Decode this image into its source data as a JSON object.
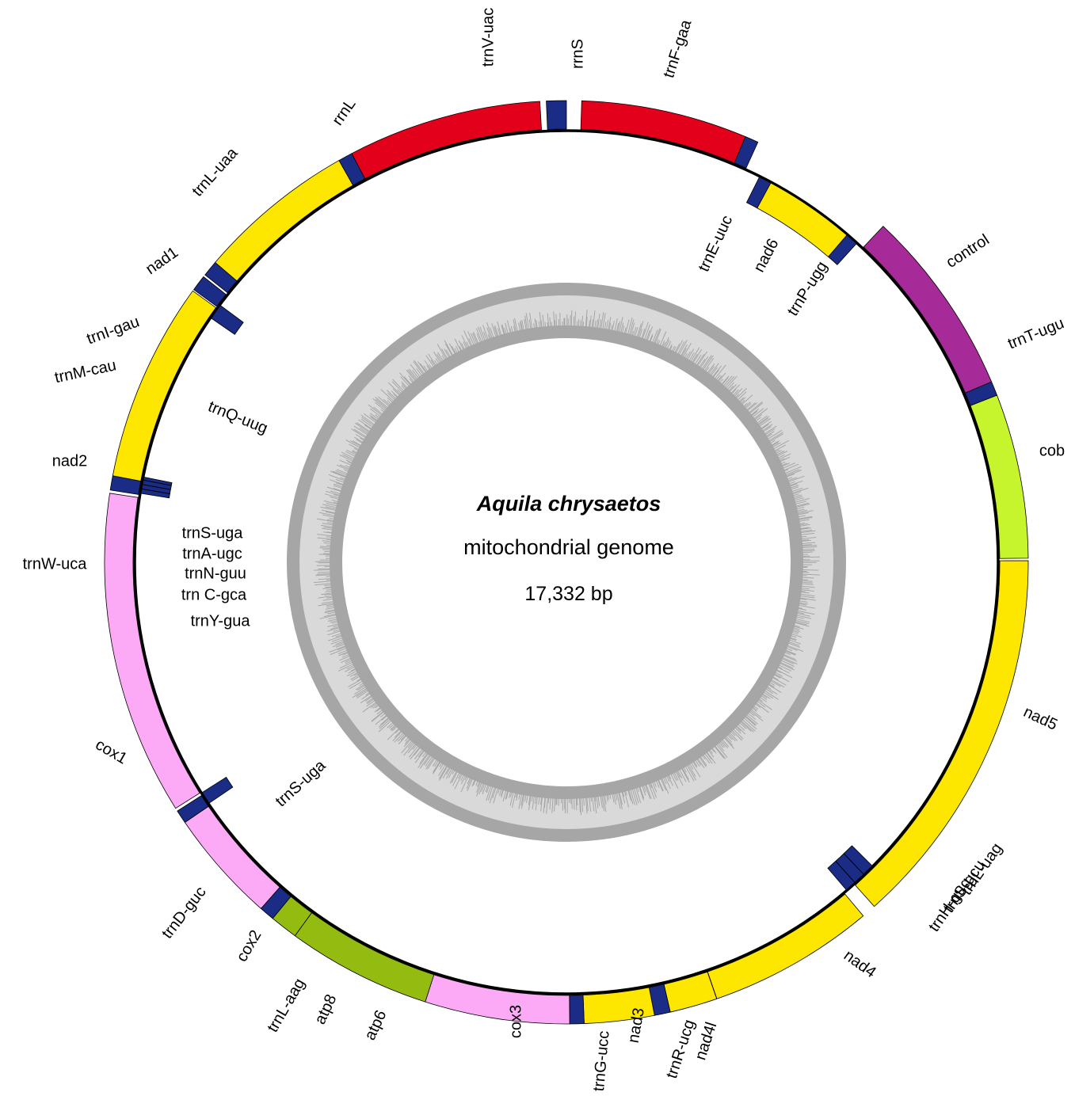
{
  "title": {
    "species": "Aquila chrysaetos",
    "subtitle": "mitochondrial genome",
    "length": "17,332 bp"
  },
  "colors": {
    "rRNA": "#e3001b",
    "tRNA": "#1a2c86",
    "nad": "#fde600",
    "cox": "#fcaaf5",
    "atp": "#94bb10",
    "cob": "#c6f52d",
    "control": "#a62a97",
    "gc_outer": "#a6a6a6",
    "gc_inner": "#d9d9d9",
    "backbone": "#000000"
  },
  "features": [
    {
      "name": "trnV-uac",
      "type": "tRNA"
    },
    {
      "name": "rrnS",
      "type": "rRNA"
    },
    {
      "name": "trnF-gaa",
      "type": "tRNA"
    },
    {
      "name": "trnE-uuc",
      "type": "tRNA"
    },
    {
      "name": "nad6",
      "type": "nad"
    },
    {
      "name": "trnP-ugg",
      "type": "tRNA"
    },
    {
      "name": "control",
      "type": "control"
    },
    {
      "name": "trnT-ugu",
      "type": "tRNA"
    },
    {
      "name": "cob",
      "type": "cob"
    },
    {
      "name": "nad5",
      "type": "nad"
    },
    {
      "name": "trnL-uag",
      "type": "tRNA"
    },
    {
      "name": "trnS-gcu",
      "type": "tRNA"
    },
    {
      "name": "trnH-gug",
      "type": "tRNA"
    },
    {
      "name": "nad4",
      "type": "nad"
    },
    {
      "name": "nad4l",
      "type": "nad"
    },
    {
      "name": "trnR-ucg",
      "type": "tRNA"
    },
    {
      "name": "nad3",
      "type": "nad"
    },
    {
      "name": "trnG-ucc",
      "type": "tRNA"
    },
    {
      "name": "cox3",
      "type": "cox"
    },
    {
      "name": "atp6",
      "type": "atp"
    },
    {
      "name": "atp8",
      "type": "atp"
    },
    {
      "name": "trnL-aag",
      "type": "tRNA"
    },
    {
      "name": "cox2",
      "type": "cox"
    },
    {
      "name": "trnD-guc",
      "type": "tRNA"
    },
    {
      "name": "trnS-uga",
      "type": "tRNA"
    },
    {
      "name": "cox1",
      "type": "cox"
    },
    {
      "name": "trnY-gua",
      "type": "tRNA"
    },
    {
      "name": "trn C-gca",
      "type": "tRNA"
    },
    {
      "name": "trnN-guu",
      "type": "tRNA"
    },
    {
      "name": "trnA-ugc",
      "type": "tRNA"
    },
    {
      "name": "trnW-uca",
      "type": "tRNA"
    },
    {
      "name": "trnS-uga",
      "type": "tRNA"
    },
    {
      "name": "nad2",
      "type": "nad"
    },
    {
      "name": "trnQ-uug",
      "type": "tRNA"
    },
    {
      "name": "trnM-cau",
      "type": "tRNA"
    },
    {
      "name": "trnI-gau",
      "type": "tRNA"
    },
    {
      "name": "nad1",
      "type": "nad"
    },
    {
      "name": "trnL-uaa",
      "type": "tRNA"
    },
    {
      "name": "rrnL",
      "type": "rRNA"
    }
  ]
}
